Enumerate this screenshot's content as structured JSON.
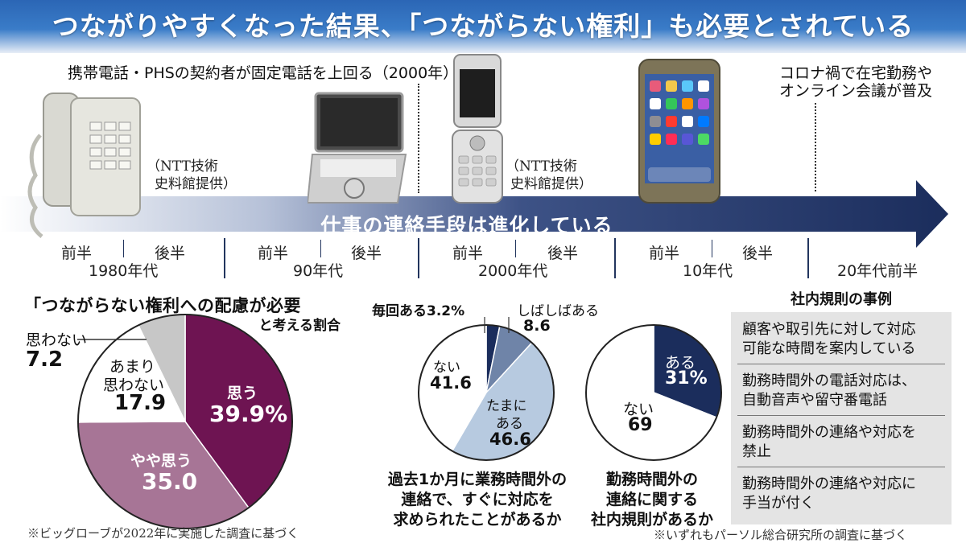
{
  "header": {
    "title": "つながりやすくなった結果、「つながらない権利」も必要とされている"
  },
  "timeline": {
    "annotation_mobile": "携帯電話・PHSの契約者が固定電話を上回る（2000年）",
    "annotation_covid": [
      "コロナ禍で在宅勤務や",
      "オンライン会議が普及"
    ],
    "credit_1": [
      "（NTT技術",
      "史料館提供）"
    ],
    "credit_2": [
      "（NTT技術",
      "史料館提供）"
    ],
    "arrow_label": "仕事の連絡手段は進化している",
    "halves": [
      "前半",
      "後半",
      "前半",
      "後半",
      "前半",
      "後半",
      "前半",
      "後半"
    ],
    "eras": [
      "1980年代",
      "90年代",
      "2000年代",
      "10年代",
      "20年代前半"
    ],
    "colors": {
      "arrow_dark": "#1b2d5c",
      "arrow_light": "#c9d4e8"
    }
  },
  "chart_left": {
    "title": "「つながらない権利への配慮が必要",
    "subtitle": "と考える割合",
    "note": "※ビッグローブが2022年に実施した調査に基づく",
    "value_labels": {
      "s0": "39.9%",
      "s1": "35.0",
      "s2": "17.9",
      "s3": "7.2"
    },
    "name_labels": {
      "s0": "思う",
      "s1": "やや思う",
      "s2a": "あまり",
      "s2b": "思わない",
      "s3": "思わない"
    }
  },
  "chart_mid": {
    "question": [
      "過去1か月に業務時間外の",
      "連絡で、すぐに対応を",
      "求められたことがあるか"
    ],
    "labels": {
      "s0": "毎回ある3.2%",
      "s1_name": "しばしばある",
      "s1_val": "8.6",
      "s2_name_a": "たまに",
      "s2_name_b": "ある",
      "s2_val": "46.6",
      "s3_name": "ない",
      "s3_val": "41.6"
    }
  },
  "chart_right": {
    "question": [
      "勤務時間外の",
      "連絡に関する",
      "社内規則があるか"
    ],
    "labels": {
      "s0_name": "ある",
      "s0_val": "31%",
      "s1_name": "ない",
      "s1_val": "69"
    }
  },
  "rules": {
    "title": "社内規則の事例",
    "items": [
      [
        "顧客や取引先に対して対応",
        "可能な時間を案内している"
      ],
      [
        "勤務時間外の電話対応は、",
        "自動音声や留守番電話"
      ],
      [
        "勤務時間外の連絡や対応を",
        "禁止"
      ],
      [
        "勤務時間外の連絡や対応に",
        "手当が付く"
      ]
    ]
  },
  "footnote_right": "※いずれもパーソル総合研究所の調査に基づく",
  "chart_data": [
    {
      "type": "pie",
      "title": "「つながらない権利への配慮が必要」と考える割合",
      "categories": [
        "思う",
        "やや思う",
        "あまり思わない",
        "思わない"
      ],
      "values": [
        39.9,
        35.0,
        17.9,
        7.2
      ],
      "unit": "%",
      "colors": [
        "#6e1452",
        "#a77596",
        "#ffffff",
        "#c7c7c7"
      ]
    },
    {
      "type": "pie",
      "title": "過去1か月に業務時間外の連絡で、すぐに対応を求められたことがあるか",
      "categories": [
        "毎回ある",
        "しばしばある",
        "たまにある",
        "ない"
      ],
      "values": [
        3.2,
        8.6,
        46.6,
        41.6
      ],
      "unit": "%",
      "colors": [
        "#1b2d5c",
        "#6f84a8",
        "#b7cae0",
        "#ffffff"
      ]
    },
    {
      "type": "pie",
      "title": "勤務時間外の連絡に関する社内規則があるか",
      "categories": [
        "ある",
        "ない"
      ],
      "values": [
        31,
        69
      ],
      "unit": "%",
      "colors": [
        "#1b2d5c",
        "#ffffff"
      ]
    }
  ]
}
